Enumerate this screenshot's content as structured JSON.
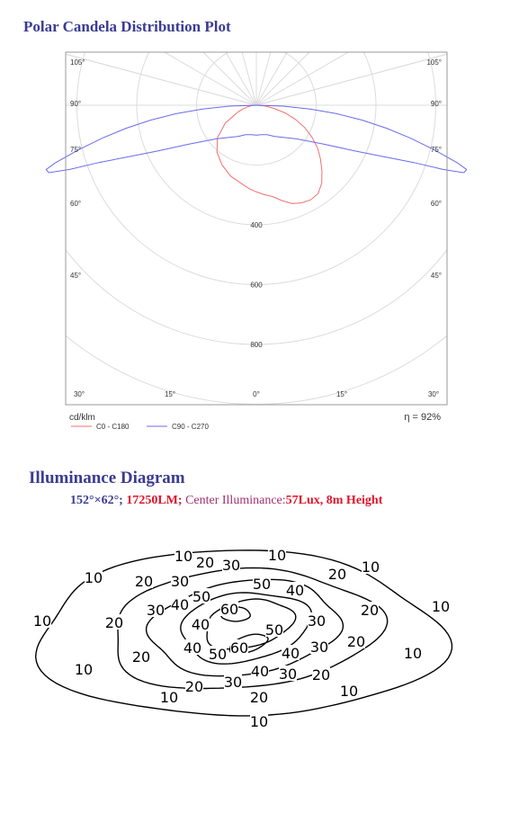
{
  "polar_title": "Polar Candela Distribution Plot",
  "illuminance_title": "Illuminance Diagram",
  "illuminance_info": {
    "dims": "152°×62°;",
    "lumens": "17250LM;",
    "center_label": "Center Illuminance:",
    "center_value": "57Lux,",
    "height": "8m Height"
  },
  "colors": {
    "title": "#3b3b93",
    "c0": "#f07070",
    "c90": "#6a6aee",
    "emphasis": "#e0142a",
    "center_label": "#a0306e"
  },
  "chart_data": [
    {
      "type": "polar-line",
      "unit_label": "cd/klm",
      "efficiency": "η = 92%",
      "angle_labels": [
        "105°",
        "90°",
        "75°",
        "60°",
        "45°",
        "30°",
        "15°",
        "0°"
      ],
      "radial_ticks": [
        {
          "value": 400,
          "label": "400"
        },
        {
          "value": 600,
          "label": "600"
        },
        {
          "value": 800,
          "label": "800"
        }
      ],
      "series": [
        {
          "name": "C0 - C180",
          "color": "#f07070",
          "points": [
            {
              "angle": -90,
              "value": 0
            },
            {
              "angle": -85,
              "value": 15
            },
            {
              "angle": -80,
              "value": 28
            },
            {
              "angle": -75,
              "value": 45
            },
            {
              "angle": -70,
              "value": 65
            },
            {
              "angle": -60,
              "value": 120
            },
            {
              "angle": -50,
              "value": 170
            },
            {
              "angle": -40,
              "value": 205
            },
            {
              "angle": -30,
              "value": 230
            },
            {
              "angle": -20,
              "value": 252
            },
            {
              "angle": -10,
              "value": 268
            },
            {
              "angle": -5,
              "value": 280
            },
            {
              "angle": 0,
              "value": 290
            },
            {
              "angle": 5,
              "value": 300
            },
            {
              "angle": 10,
              "value": 310
            },
            {
              "angle": 15,
              "value": 330
            },
            {
              "angle": 20,
              "value": 350
            },
            {
              "angle": 25,
              "value": 360
            },
            {
              "angle": 30,
              "value": 365
            },
            {
              "angle": 35,
              "value": 360
            },
            {
              "angle": 40,
              "value": 340
            },
            {
              "angle": 45,
              "value": 310
            },
            {
              "angle": 50,
              "value": 280
            },
            {
              "angle": 55,
              "value": 250
            },
            {
              "angle": 60,
              "value": 215
            },
            {
              "angle": 65,
              "value": 180
            },
            {
              "angle": 70,
              "value": 140
            },
            {
              "angle": 75,
              "value": 100
            },
            {
              "angle": 80,
              "value": 60
            },
            {
              "angle": 85,
              "value": 28
            },
            {
              "angle": 90,
              "value": 0
            }
          ]
        },
        {
          "name": "C90 - C270",
          "color": "#6a6aee",
          "points": [
            {
              "angle": -90,
              "value": 0
            },
            {
              "angle": -88,
              "value": 90
            },
            {
              "angle": -86,
              "value": 180
            },
            {
              "angle": -84,
              "value": 270
            },
            {
              "angle": -82,
              "value": 355
            },
            {
              "angle": -80,
              "value": 440
            },
            {
              "angle": -78,
              "value": 525
            },
            {
              "angle": -76,
              "value": 610
            },
            {
              "angle": -74,
              "value": 700
            },
            {
              "angle": -73,
              "value": 735
            },
            {
              "angle": -72,
              "value": 730
            },
            {
              "angle": -71,
              "value": 660
            },
            {
              "angle": -70,
              "value": 560
            },
            {
              "angle": -68,
              "value": 460
            },
            {
              "angle": -65,
              "value": 360
            },
            {
              "angle": -60,
              "value": 260
            },
            {
              "angle": -50,
              "value": 175
            },
            {
              "angle": -40,
              "value": 140
            },
            {
              "angle": -30,
              "value": 120
            },
            {
              "angle": -20,
              "value": 105
            },
            {
              "angle": -10,
              "value": 100
            },
            {
              "angle": 0,
              "value": 100
            },
            {
              "angle": 10,
              "value": 100
            },
            {
              "angle": 20,
              "value": 105
            },
            {
              "angle": 30,
              "value": 120
            },
            {
              "angle": 40,
              "value": 140
            },
            {
              "angle": 50,
              "value": 175
            },
            {
              "angle": 60,
              "value": 260
            },
            {
              "angle": 65,
              "value": 360
            },
            {
              "angle": 68,
              "value": 460
            },
            {
              "angle": 70,
              "value": 560
            },
            {
              "angle": 71,
              "value": 660
            },
            {
              "angle": 72,
              "value": 730
            },
            {
              "angle": 73,
              "value": 735
            },
            {
              "angle": 74,
              "value": 700
            },
            {
              "angle": 76,
              "value": 610
            },
            {
              "angle": 78,
              "value": 525
            },
            {
              "angle": 80,
              "value": 440
            },
            {
              "angle": 82,
              "value": 355
            },
            {
              "angle": 84,
              "value": 270
            },
            {
              "angle": 86,
              "value": 180
            },
            {
              "angle": 88,
              "value": 90
            },
            {
              "angle": 90,
              "value": 0
            }
          ]
        }
      ]
    },
    {
      "type": "contour",
      "levels": [
        {
          "value": 10,
          "label": "10"
        },
        {
          "value": 20,
          "label": "20"
        },
        {
          "value": 30,
          "label": "30"
        },
        {
          "value": 40,
          "label": "40"
        },
        {
          "value": 50,
          "label": "50"
        },
        {
          "value": 60,
          "label": "60"
        }
      ]
    }
  ]
}
